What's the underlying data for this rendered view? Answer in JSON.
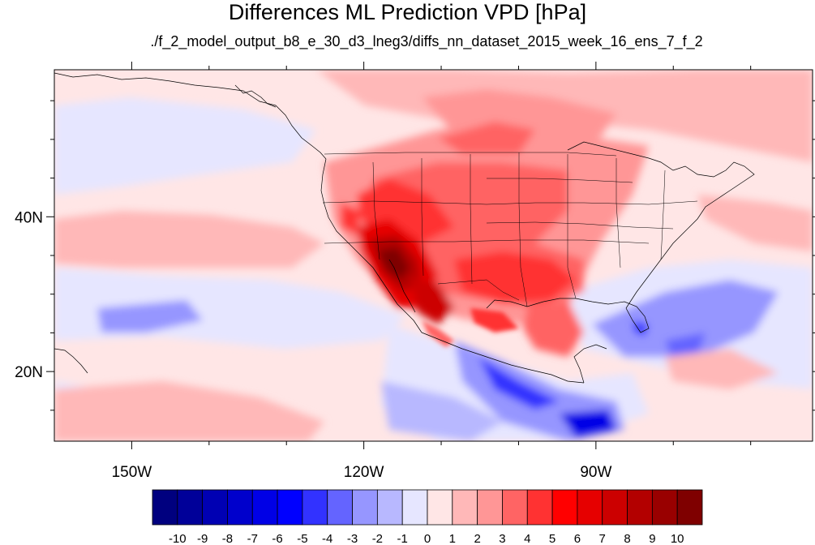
{
  "header": {
    "title": "Differences ML Prediction VPD [hPa]",
    "subtitle": "./f_2_model_output_b8_e_30_d3_lneg3/diffs_nn_dataset_2015_week_16_ens_7_f_2"
  },
  "map": {
    "lon_range": [
      -160,
      -62
    ],
    "lat_range": [
      11,
      59
    ],
    "lat_labels": [
      {
        "value": 40,
        "label": "40N"
      },
      {
        "value": 20,
        "label": "20N"
      }
    ],
    "lon_labels": [
      {
        "value": -150,
        "label": "150W"
      },
      {
        "value": -120,
        "label": "120W"
      },
      {
        "value": -90,
        "label": "90W"
      }
    ],
    "colorbar": {
      "labels": [
        "-10",
        "-9",
        "-8",
        "-7",
        "-6",
        "-5",
        "-4",
        "-3",
        "-2",
        "-1",
        "0",
        "1",
        "2",
        "3",
        "4",
        "5",
        "6",
        "7",
        "8",
        "9",
        "10"
      ],
      "colors": [
        "#00007f",
        "#000099",
        "#0000b3",
        "#0000cc",
        "#0000e6",
        "#0000ff",
        "#3232ff",
        "#6464ff",
        "#9696ff",
        "#b8b8ff",
        "#e6e6ff",
        "#ffe6e6",
        "#ffb8b8",
        "#ff9696",
        "#ff6464",
        "#ff3232",
        "#ff0000",
        "#e60000",
        "#cc0000",
        "#b30000",
        "#990000",
        "#7f0000"
      ]
    }
  }
}
